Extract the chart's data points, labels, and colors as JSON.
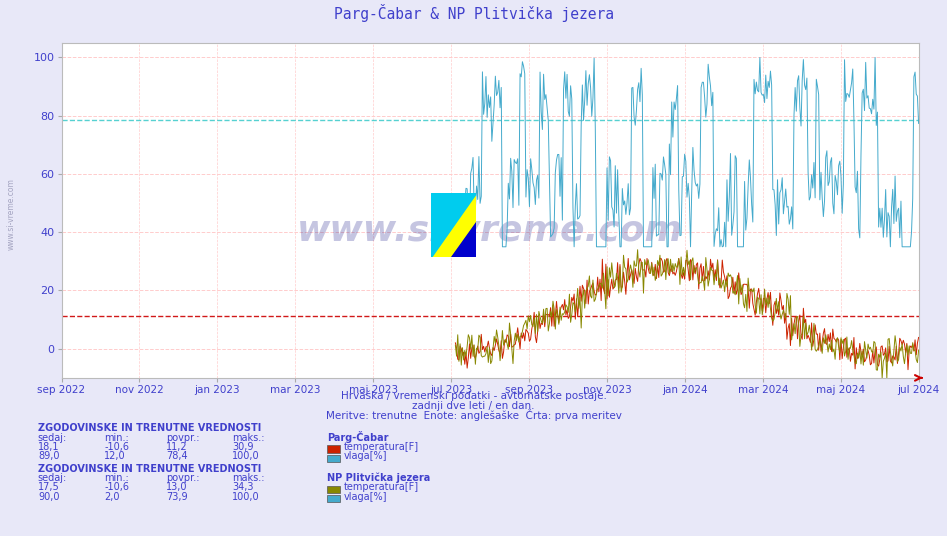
{
  "title": "Parg-Čabar & NP Plitvička jezera",
  "title_color": "#4040cc",
  "bg_color": "#e8e8f8",
  "plot_bg_color": "#ffffff",
  "ylim": [
    -10,
    105
  ],
  "yticks": [
    0,
    20,
    40,
    60,
    80,
    100
  ],
  "x_labels": [
    "sep 2022",
    "nov 2022",
    "jan 2023",
    "mar 2023",
    "maj 2023",
    "jul 2023",
    "sep 2023",
    "nov 2023",
    "jan 2024",
    "mar 2024",
    "maj 2024",
    "jul 2024"
  ],
  "footer_line1": "Hrvaška / vremenski podatki - avtomatske postaje.",
  "footer_line2": "zadnji dve leti / en dan.",
  "footer_line3": "Meritve: trenutne  Enote: anglešaške  Črta: prva meritev",
  "text_color": "#4040cc",
  "watermark": "www.si-vreme.com",
  "section1_header": "ZGODOVINSKE IN TRENUTNE VREDNOSTI",
  "section1_station": "Parg-Čabar",
  "section1_rows": [
    {
      "sedaj": "18,1",
      "min": "-10,6",
      "povpr": "11,2",
      "maks": "30,9",
      "label": "temperatura[F]",
      "color": "#cc2200"
    },
    {
      "sedaj": "89,0",
      "min": "12,0",
      "povpr": "78,4",
      "maks": "100,0",
      "label": "vlaga[%]",
      "color": "#44aacc"
    }
  ],
  "section2_header": "ZGODOVINSKE IN TRENUTNE VREDNOSTI",
  "section2_station": "NP Plitvička jezera",
  "section2_rows": [
    {
      "sedaj": "17,5",
      "min": "-10,6",
      "povpr": "13,0",
      "maks": "34,3",
      "label": "temperatura[F]",
      "color": "#888800"
    },
    {
      "sedaj": "90,0",
      "min": "2,0",
      "povpr": "73,9",
      "maks": "100,0",
      "label": "vlaga[%]",
      "color": "#44aacc"
    }
  ],
  "vlaga_avg_1": 78.4,
  "temp_avg_1": 11.2,
  "temp_avg_2": 13.0,
  "vlaga_color": "#44aacc",
  "temp1_color": "#cc2200",
  "temp2_color": "#888800",
  "grid_color": "#ffcccc",
  "avg_line_cyan": "#44cccc",
  "avg_line_red": "#cc0000"
}
